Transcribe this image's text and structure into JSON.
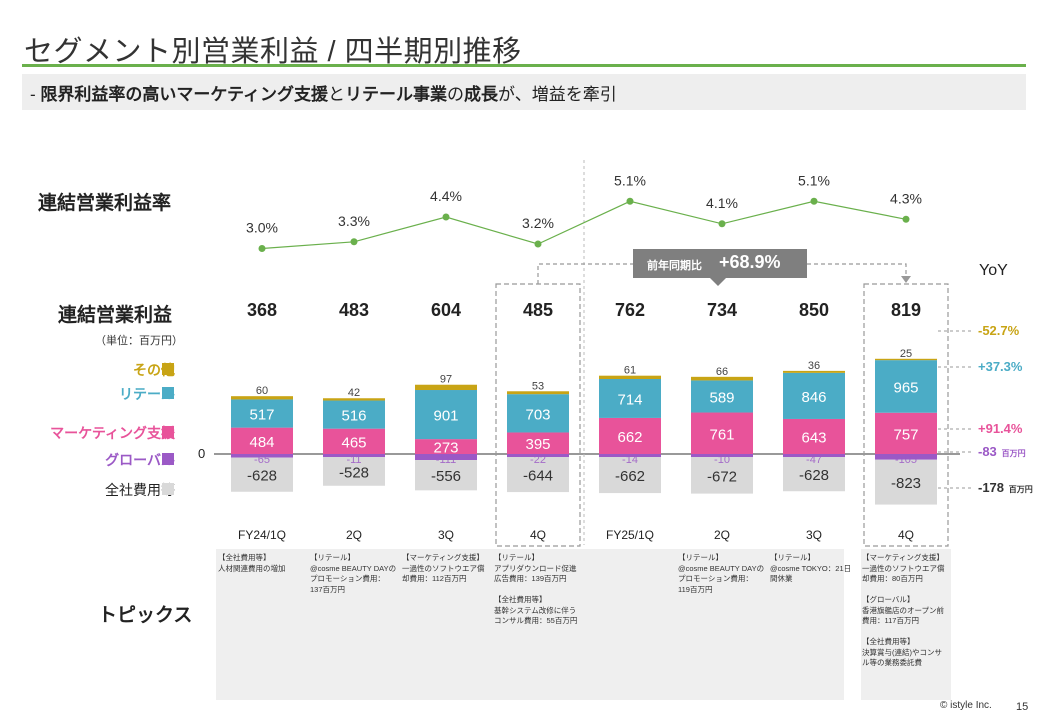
{
  "header": {
    "title": "セグメント別営業利益 / 四半期別推移",
    "subtitle_prefix": "-  ",
    "subtitle_b1": "限界利益率の高いマーケティング支援",
    "subtitle_t1": "と",
    "subtitle_b2": "リテール事業",
    "subtitle_t2": "の",
    "subtitle_b3": "成長",
    "subtitle_t3": "が、増益を牽引"
  },
  "labels": {
    "margin_row": "連結営業利益率",
    "op_row": "連結営業利益",
    "unit": "（単位：百万円）",
    "topics_row": "トピックス",
    "yoy": "YoY",
    "zero": "0"
  },
  "legend": {
    "other": "その他",
    "retail": "リテール",
    "marketing": "マーケティング支援",
    "global": "グローバル",
    "corporate": "全社費用等"
  },
  "callout": {
    "label": "前年同期比",
    "value": "+68.9%"
  },
  "colors": {
    "other": "#c8a415",
    "retail": "#4bacc6",
    "marketing": "#e8539a",
    "global": "#9b59c6",
    "corporate": "#d9d9d9",
    "line": "#6ab04c",
    "accent": "#6ab04c"
  },
  "chart_data": {
    "type": "bar",
    "stacked": true,
    "categories": [
      "FY24/1Q",
      "2Q",
      "3Q",
      "4Q",
      "FY25/1Q",
      "2Q",
      "3Q",
      "4Q"
    ],
    "total_operating_profit": [
      368,
      483,
      604,
      485,
      762,
      734,
      850,
      819
    ],
    "operating_margin_pct": [
      "3.0%",
      "3.3%",
      "4.4%",
      "3.2%",
      "5.1%",
      "4.1%",
      "5.1%",
      "4.3%"
    ],
    "operating_margin_values": [
      3.0,
      3.3,
      4.4,
      3.2,
      5.1,
      4.1,
      5.1,
      4.3
    ],
    "series": [
      {
        "key": "marketing",
        "name": "マーケティング支援",
        "values": [
          484,
          465,
          273,
          395,
          662,
          761,
          643,
          757
        ]
      },
      {
        "key": "retail",
        "name": "リテール",
        "values": [
          517,
          516,
          901,
          703,
          714,
          589,
          846,
          965
        ]
      },
      {
        "key": "other",
        "name": "その他",
        "values": [
          60,
          42,
          97,
          53,
          61,
          66,
          36,
          25
        ]
      },
      {
        "key": "global",
        "name": "グローバル",
        "values": [
          -65,
          -11,
          -111,
          -22,
          -14,
          -10,
          -47,
          -105
        ]
      },
      {
        "key": "corporate",
        "name": "全社費用等",
        "values": [
          -628,
          -528,
          -556,
          -644,
          -662,
          -672,
          -628,
          -823
        ]
      }
    ],
    "yoy": [
      {
        "key": "other",
        "value": "-52.7%"
      },
      {
        "key": "retail",
        "value": "+37.3%"
      },
      {
        "key": "marketing",
        "value": "+91.4%"
      },
      {
        "key": "global",
        "value": "-83",
        "unit": "百万円"
      },
      {
        "key": "corporate",
        "value": "-178",
        "unit": "百万円"
      }
    ],
    "ylabel": "百万円"
  },
  "topics": [
    "【全社費用等】\n人材関連費用の増加",
    "【リテール】\n@cosme BEAUTY DAYのプロモーション費用：\n137百万円",
    "【マーケティング支援】\n一過性のソフトウエア償却費用：112百万円",
    "【リテール】\nアプリダウンロード促進広告費用：139百万円\n\n【全社費用等】\n基幹システム改修に伴うコンサル費用：55百万円",
    "",
    "【リテール】\n@cosme BEAUTY DAYのプロモーション費用：\n119百万円",
    "【リテール】\n@cosme TOKYO：21日間休業",
    "【マーケティング支援】\n一過性のソフトウエア償却費用：80百万円\n\n【グローバル】\n香港旗艦店のオープン前費用：117百万円\n\n【全社費用等】\n決算賞与(連結)やコンサル等の業務委託費"
  ],
  "footer": {
    "copyright": "© istyle Inc.",
    "page": "15"
  }
}
